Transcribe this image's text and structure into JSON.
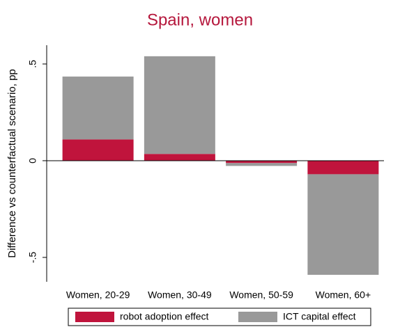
{
  "chart_data": {
    "type": "stacked_bar",
    "title": "Spain, women",
    "y_label": "Difference vs counterfactual scenario, pp",
    "categories": [
      "Women, 20-29",
      "Women, 30-49",
      "Women, 50-59",
      "Women, 60+"
    ],
    "series": [
      {
        "name": "robot adoption effect",
        "color": "#c0143c",
        "values": [
          0.11,
          0.035,
          -0.012,
          -0.07
        ]
      },
      {
        "name": "ICT capital effect",
        "color": "#999999",
        "values": [
          0.325,
          0.505,
          -0.015,
          -0.52
        ]
      }
    ],
    "ylim": [
      -0.626,
      0.597
    ],
    "yticks": [
      {
        "value": -0.5,
        "label": "-.5"
      },
      0,
      {
        "value": 0.5,
        "label": ".5"
      }
    ],
    "zero_line": true
  }
}
